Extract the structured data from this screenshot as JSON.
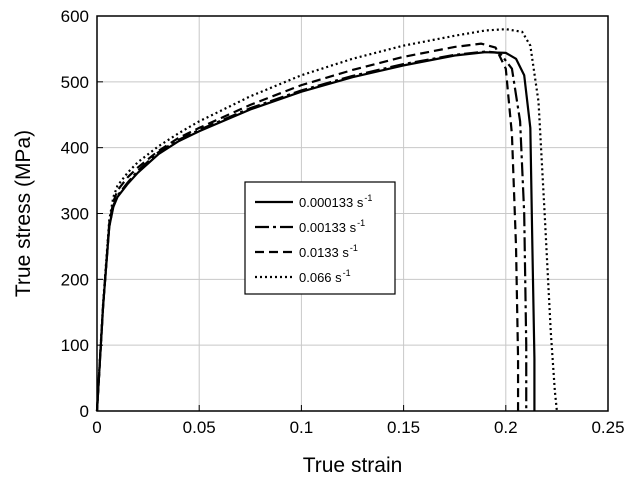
{
  "chart_data": {
    "type": "line",
    "xlabel": "True strain",
    "ylabel": "True stress (MPa)",
    "xlim": [
      0,
      0.25
    ],
    "ylim": [
      0,
      600
    ],
    "xticks": [
      "0",
      "0.05",
      "0.1",
      "0.15",
      "0.2",
      "0.25"
    ],
    "xtick_values": [
      0,
      0.05,
      0.1,
      0.15,
      0.2,
      0.25
    ],
    "yticks": [
      "0",
      "100",
      "200",
      "300",
      "400",
      "500",
      "600"
    ],
    "ytick_values": [
      0,
      100,
      200,
      300,
      400,
      500,
      600
    ],
    "grid": true,
    "legend_position": "center",
    "series": [
      {
        "name": "0.000133 s",
        "name_sup": "-1",
        "style": "solid",
        "x": [
          0,
          0.003,
          0.006,
          0.008,
          0.01,
          0.015,
          0.02,
          0.03,
          0.04,
          0.05,
          0.075,
          0.1,
          0.125,
          0.15,
          0.175,
          0.19,
          0.2,
          0.205,
          0.209,
          0.212,
          0.213,
          0.214,
          0.214
        ],
        "y": [
          0,
          160,
          280,
          310,
          325,
          345,
          362,
          390,
          410,
          425,
          458,
          485,
          507,
          525,
          540,
          545,
          544,
          535,
          510,
          430,
          250,
          80,
          0
        ]
      },
      {
        "name": "0.00133 s",
        "name_sup": "-1",
        "style": "dashdot",
        "x": [
          0,
          0.003,
          0.006,
          0.008,
          0.01,
          0.015,
          0.02,
          0.03,
          0.04,
          0.05,
          0.075,
          0.1,
          0.125,
          0.15,
          0.175,
          0.19,
          0.197,
          0.203,
          0.207,
          0.209,
          0.21,
          0.21
        ],
        "y": [
          0,
          160,
          280,
          312,
          327,
          347,
          365,
          393,
          412,
          427,
          460,
          487,
          509,
          527,
          541,
          546,
          544,
          520,
          440,
          300,
          100,
          0
        ]
      },
      {
        "name": "0.0133 s",
        "name_sup": "-1",
        "style": "dashed",
        "x": [
          0,
          0.003,
          0.006,
          0.008,
          0.01,
          0.015,
          0.02,
          0.03,
          0.04,
          0.05,
          0.075,
          0.1,
          0.125,
          0.15,
          0.175,
          0.188,
          0.195,
          0.2,
          0.203,
          0.205,
          0.206,
          0.206
        ],
        "y": [
          0,
          160,
          285,
          318,
          335,
          355,
          370,
          395,
          415,
          430,
          465,
          495,
          518,
          538,
          553,
          558,
          552,
          520,
          420,
          250,
          80,
          0
        ]
      },
      {
        "name": "0.066 s",
        "name_sup": "-1",
        "style": "dotted",
        "x": [
          0,
          0.003,
          0.006,
          0.008,
          0.01,
          0.015,
          0.02,
          0.03,
          0.04,
          0.05,
          0.075,
          0.1,
          0.125,
          0.15,
          0.175,
          0.19,
          0.2,
          0.208,
          0.212,
          0.216,
          0.219,
          0.222,
          0.224,
          0.225
        ],
        "y": [
          0,
          165,
          290,
          325,
          342,
          362,
          378,
          402,
          422,
          440,
          478,
          510,
          535,
          555,
          570,
          578,
          580,
          576,
          555,
          470,
          300,
          120,
          30,
          0
        ]
      }
    ]
  }
}
